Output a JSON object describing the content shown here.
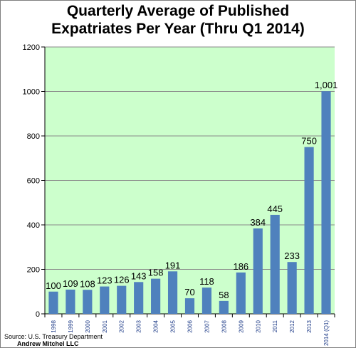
{
  "chart_data": {
    "type": "bar",
    "title_lines": [
      "Quarterly Average of Published",
      "Expatriates Per Year (Thru Q1 2014)"
    ],
    "categories": [
      "1998",
      "1999",
      "2000",
      "2001",
      "2002",
      "2003",
      "2004",
      "2005",
      "2006",
      "2007",
      "2008",
      "2009",
      "2010",
      "2011",
      "2012",
      "2013",
      "2014 (Q1)"
    ],
    "values": [
      100,
      109,
      108,
      123,
      126,
      143,
      158,
      191,
      70,
      118,
      58,
      186,
      384,
      445,
      233,
      750,
      1001
    ],
    "data_labels": [
      "100",
      "109",
      "108",
      "123",
      "126",
      "143",
      "158",
      "191",
      "70",
      "118",
      "58",
      "186",
      "384",
      "445",
      "233",
      "750",
      "1,001"
    ],
    "ylim": [
      0,
      1200
    ],
    "yticks": [
      0,
      200,
      400,
      600,
      800,
      1000,
      1200
    ],
    "xlabel": "",
    "ylabel": "",
    "grid": true,
    "legend": "none",
    "colors": {
      "bar": "#4f81bd",
      "plot_background": "#ccffcc",
      "gridline": "#8a8a8a",
      "category_label": "#1f3c88"
    }
  },
  "footer": {
    "source": "Source: U.S. Treasury Department",
    "author": "Andrew Mitchel LLC"
  }
}
